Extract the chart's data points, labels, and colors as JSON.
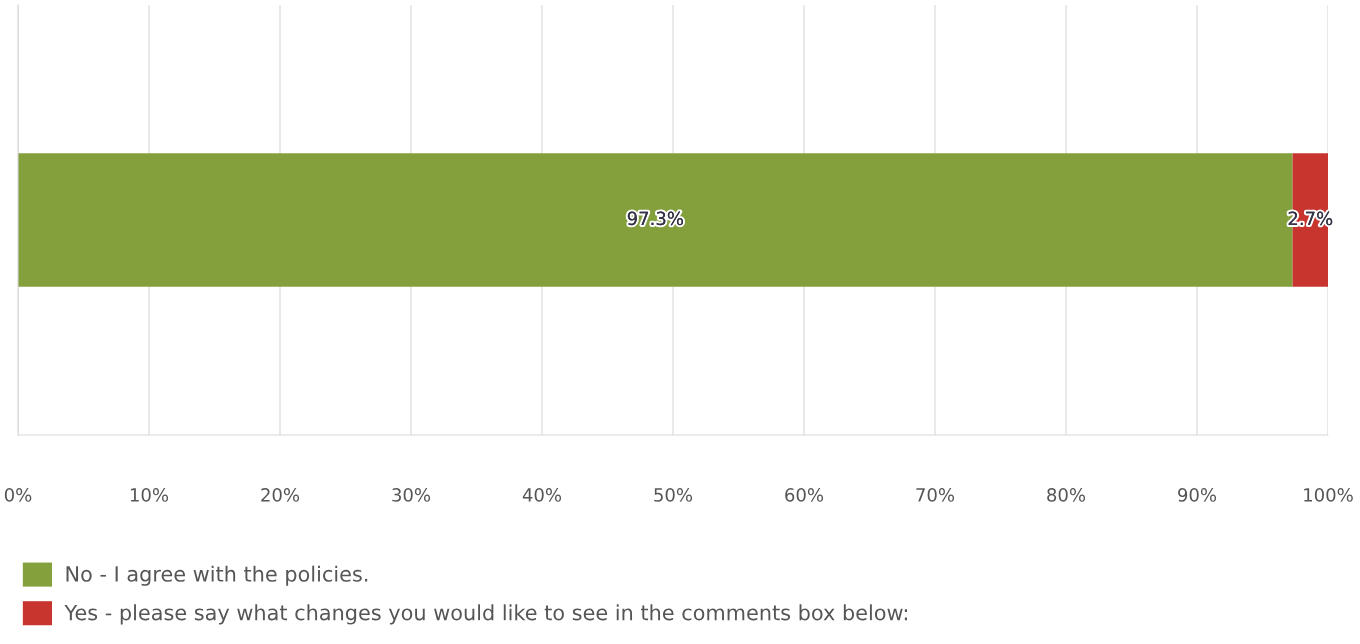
{
  "chart_data": {
    "type": "bar",
    "orientation": "horizontal",
    "stacked": true,
    "categories": [
      null
    ],
    "series": [
      {
        "name": "No - I agree with the policies.",
        "color": "#84a03c",
        "values": [
          97.3
        ],
        "value_labels": [
          "97.3%"
        ]
      },
      {
        "name": "Yes - please say what changes you would like to see in the comments box below:",
        "color": "#c8352e",
        "values": [
          2.7
        ],
        "value_labels": [
          "2.7%"
        ]
      }
    ],
    "xlim": [
      0,
      100
    ],
    "xticks": [
      {
        "value": 0,
        "label": "0%"
      },
      {
        "value": 10,
        "label": "10%"
      },
      {
        "value": 20,
        "label": "20%"
      },
      {
        "value": 30,
        "label": "30%"
      },
      {
        "value": 40,
        "label": "40%"
      },
      {
        "value": 50,
        "label": "50%"
      },
      {
        "value": 60,
        "label": "60%"
      },
      {
        "value": 70,
        "label": "70%"
      },
      {
        "value": 80,
        "label": "80%"
      },
      {
        "value": 90,
        "label": "90%"
      },
      {
        "value": 100,
        "label": "100%"
      }
    ],
    "grid": "x",
    "legend": "bottom"
  }
}
